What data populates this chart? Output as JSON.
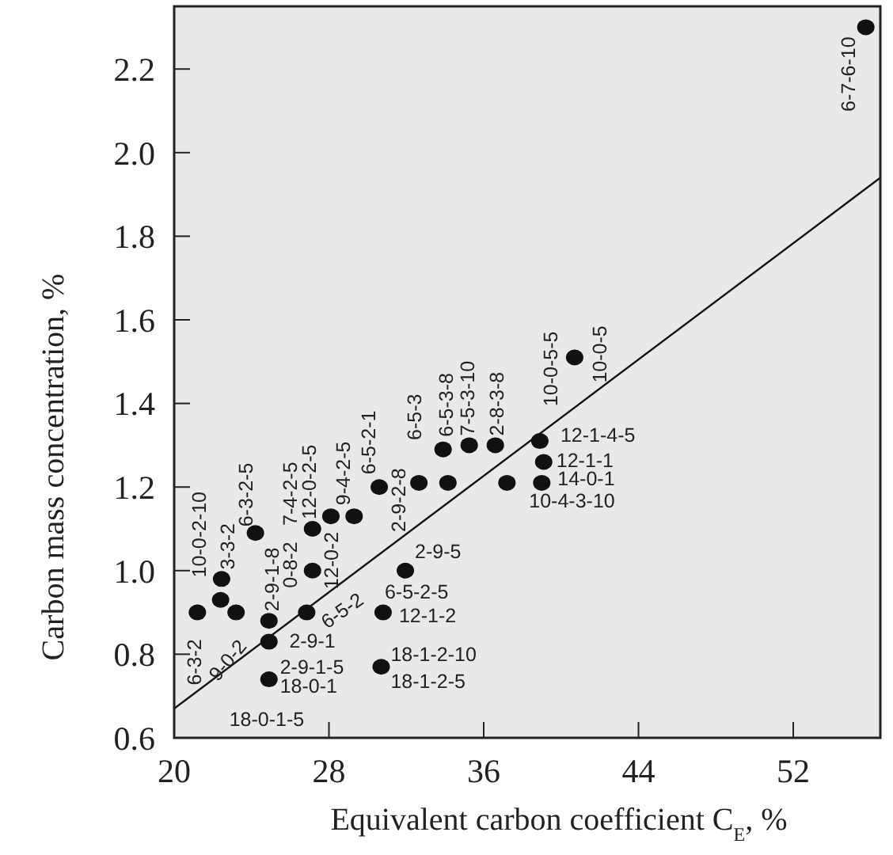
{
  "chart_data": {
    "type": "scatter",
    "xlabel": "Equivalent carbon coefficient C$_{E}$, %",
    "ylabel": "Carbon mass concentration, %",
    "xlim": [
      20,
      56.5
    ],
    "ylim": [
      0.6,
      2.35
    ],
    "xticks": [
      20,
      28,
      36,
      44,
      52
    ],
    "yticks": [
      {
        "value": 0.6,
        "label": "0.6"
      },
      {
        "value": 0.8,
        "label": "0.8"
      },
      {
        "value": 1,
        "label": "1.0"
      },
      {
        "value": 1.2,
        "label": "1.2"
      },
      {
        "value": 1.4,
        "label": "1.4"
      },
      {
        "value": 1.6,
        "label": "1.6"
      },
      {
        "value": 1.8,
        "label": "1.8"
      },
      {
        "value": 2,
        "label": "2.0"
      },
      {
        "value": 2.2,
        "label": "2.2"
      }
    ],
    "grid": false,
    "series": [
      {
        "color": "#111111",
        "marker": "circle",
        "x": [
          21.2,
          22.45,
          22.4,
          23.2,
          24.2,
          24.9,
          24.9,
          24.9,
          26.85,
          27.15,
          27.15,
          28.1,
          29.3,
          30.6,
          30.8,
          30.7,
          31.95,
          32.65,
          34.15,
          33.9,
          35.25,
          36.6,
          37.2,
          38.9,
          39.1,
          39.0,
          40.7,
          55.75
        ],
        "values": [
          0.9,
          0.98,
          0.93,
          0.9,
          1.09,
          0.88,
          0.83,
          0.74,
          0.9,
          1.0,
          1.1,
          1.13,
          1.13,
          1.2,
          0.9,
          0.77,
          1.0,
          1.21,
          1.21,
          1.29,
          1.3,
          1.3,
          1.21,
          1.31,
          1.26,
          1.21,
          1.51,
          2.3
        ]
      },
      {
        "type": "line",
        "color": "#111111",
        "x": [
          20,
          56.5
        ],
        "values": [
          0.67,
          1.94
        ],
        "marker": "none",
        "line_style": "solid"
      }
    ],
    "annotations": [
      {
        "text": "6-3-2",
        "x": 21.2,
        "y": 0.9
      },
      {
        "text": "9-0-2",
        "x": 23.2,
        "y": 0.9
      },
      {
        "text": "10-0-2-10",
        "x": 22.45,
        "y": 0.98
      },
      {
        "text": "3-3-2",
        "x": 22.45,
        "y": 0.98
      },
      {
        "text": "6-3-2-5",
        "x": 24.2,
        "y": 1.09
      },
      {
        "text": "2-9-1-8",
        "x": 24.9,
        "y": 0.88
      },
      {
        "text": "0-8-2",
        "x": 27.15,
        "y": 1.0
      },
      {
        "text": "7-4-2-5",
        "x": 27.15,
        "y": 1.1
      },
      {
        "text": "12-0-2-5",
        "x": 27.15,
        "y": 1.1
      },
      {
        "text": "12-0-2",
        "x": 28.1,
        "y": 1.13
      },
      {
        "text": "9-4-2-5",
        "x": 29.3,
        "y": 1.13
      },
      {
        "text": "6-5-2-1",
        "x": 30.6,
        "y": 1.2
      },
      {
        "text": "6-5-2",
        "x": 26.85,
        "y": 0.9
      },
      {
        "text": "2-9-1",
        "x": 26.85,
        "y": 0.9
      },
      {
        "text": "2-9-1-5",
        "x": 24.9,
        "y": 0.83
      },
      {
        "text": "18-0-1",
        "x": 24.9,
        "y": 0.74
      },
      {
        "text": "18-0-1-5",
        "x": 24.9,
        "y": 0.74
      },
      {
        "text": "2-9-2-8",
        "x": 32.65,
        "y": 1.21
      },
      {
        "text": "6-5-3",
        "x": 32.65,
        "y": 1.21
      },
      {
        "text": "6-5-3-8",
        "x": 33.9,
        "y": 1.29
      },
      {
        "text": "7-5-3-10",
        "x": 35.25,
        "y": 1.3
      },
      {
        "text": "2-8-3-8",
        "x": 36.6,
        "y": 1.3
      },
      {
        "text": "10-0-5-5",
        "x": 38.9,
        "y": 1.31
      },
      {
        "text": "10-0-5",
        "x": 40.7,
        "y": 1.51
      },
      {
        "text": "12-1-4-5",
        "x": 38.9,
        "y": 1.31
      },
      {
        "text": "12-1-1",
        "x": 39.1,
        "y": 1.26
      },
      {
        "text": "14-0-1",
        "x": 39.0,
        "y": 1.21
      },
      {
        "text": "10-4-3-10",
        "x": 37.2,
        "y": 1.21
      },
      {
        "text": "2-9-5",
        "x": 31.95,
        "y": 1.0
      },
      {
        "text": "6-5-2-5",
        "x": 30.8,
        "y": 0.9
      },
      {
        "text": "12-1-2",
        "x": 30.8,
        "y": 0.9
      },
      {
        "text": "18-1-2-10",
        "x": 30.7,
        "y": 0.77
      },
      {
        "text": "18-1-2-5",
        "x": 30.7,
        "y": 0.77
      },
      {
        "text": "6-7-6-10",
        "x": 55.75,
        "y": 2.3
      }
    ]
  }
}
